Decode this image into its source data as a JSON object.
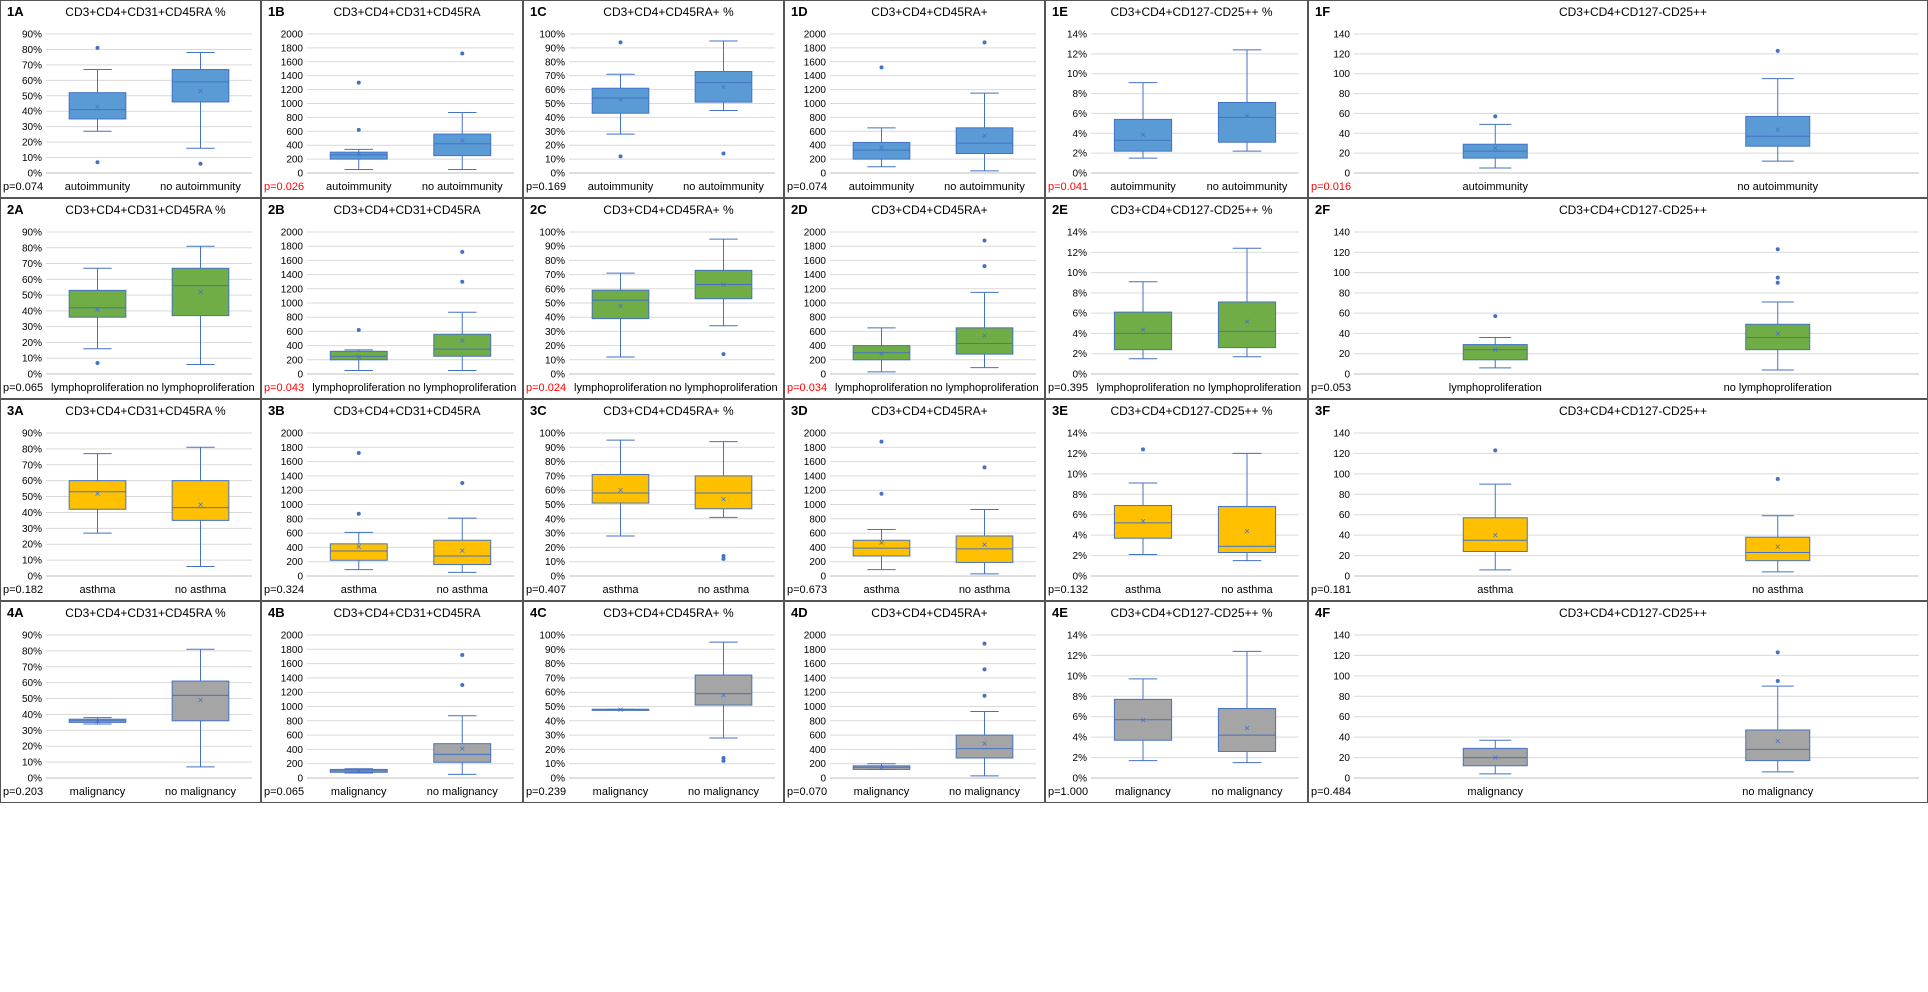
{
  "colors": {
    "autoimmunity": "#5b9bd5",
    "lymphoproliferation": "#70ad47",
    "asthma": "#ffc000",
    "malignancy": "#a5a5a5",
    "stroke": "#4472c4",
    "significant": "#ff0000"
  },
  "metrics": [
    {
      "title": "CD3+CD4+CD31+CD45RA %",
      "ticks": [
        "0%",
        "10%",
        "20%",
        "30%",
        "40%",
        "50%",
        "60%",
        "70%",
        "80%",
        "90%"
      ],
      "ymax": 90
    },
    {
      "title": "CD3+CD4+CD31+CD45RA",
      "ticks": [
        "0",
        "200",
        "400",
        "600",
        "800",
        "1000",
        "1200",
        "1400",
        "1600",
        "1800",
        "2000"
      ],
      "ymax": 2000
    },
    {
      "title": "CD3+CD4+CD45RA+ %",
      "ticks": [
        "0%",
        "10%",
        "20%",
        "30%",
        "40%",
        "50%",
        "60%",
        "70%",
        "80%",
        "90%",
        "100%"
      ],
      "ymax": 100
    },
    {
      "title": "CD3+CD4+CD45RA+",
      "ticks": [
        "0",
        "200",
        "400",
        "600",
        "800",
        "1000",
        "1200",
        "1400",
        "1600",
        "1800",
        "2000"
      ],
      "ymax": 2000
    },
    {
      "title": "CD3+CD4+CD127-CD25++ %",
      "ticks": [
        "0%",
        "2%",
        "4%",
        "6%",
        "8%",
        "10%",
        "12%",
        "14%"
      ],
      "ymax": 14
    },
    {
      "title": "CD3+CD4+CD127-CD25++",
      "ticks": [
        "0",
        "20",
        "40",
        "60",
        "80",
        "100",
        "120",
        "140"
      ],
      "ymax": 140
    }
  ],
  "chart_data": [
    {
      "id": "1A",
      "row": 0,
      "col": 0,
      "type": "box",
      "title": "CD3+CD4+CD31+CD45RA %",
      "pvalue": "p=0.074",
      "significant": false,
      "categories": [
        "autoimmunity",
        "no autoimmunity"
      ],
      "boxes": [
        {
          "min": 27,
          "q1": 35,
          "median": 41,
          "q3": 52,
          "max": 67,
          "mean": 43,
          "outliers": [
            81,
            7
          ]
        },
        {
          "min": 16,
          "q1": 46,
          "median": 59,
          "q3": 67,
          "max": 78,
          "mean": 53,
          "outliers": [
            6
          ]
        }
      ]
    },
    {
      "id": "1B",
      "row": 0,
      "col": 1,
      "type": "box",
      "title": "CD3+CD4+CD31+CD45RA",
      "pvalue": "p=0.026",
      "significant": true,
      "categories": [
        "autoimmunity",
        "no autoimmunity"
      ],
      "boxes": [
        {
          "min": 50,
          "q1": 200,
          "median": 260,
          "q3": 300,
          "max": 340,
          "mean": 270,
          "outliers": [
            1300,
            620
          ]
        },
        {
          "min": 50,
          "q1": 250,
          "median": 420,
          "q3": 560,
          "max": 870,
          "mean": 470,
          "outliers": [
            1720
          ]
        }
      ]
    },
    {
      "id": "1C",
      "row": 0,
      "col": 2,
      "type": "box",
      "title": "CD3+CD4+CD45RA+ %",
      "pvalue": "p=0.169",
      "significant": false,
      "categories": [
        "autoimmunity",
        "no autoimmunity"
      ],
      "boxes": [
        {
          "min": 28,
          "q1": 43,
          "median": 54,
          "q3": 61,
          "max": 71,
          "mean": 53,
          "outliers": [
            94,
            12
          ]
        },
        {
          "min": 45,
          "q1": 51,
          "median": 65,
          "q3": 73,
          "max": 95,
          "mean": 62,
          "outliers": [
            14
          ]
        }
      ]
    },
    {
      "id": "1D",
      "row": 0,
      "col": 3,
      "type": "box",
      "title": "CD3+CD4+CD45RA+",
      "pvalue": "p=0.074",
      "significant": false,
      "categories": [
        "autoimmunity",
        "no autoimmunity"
      ],
      "boxes": [
        {
          "min": 90,
          "q1": 200,
          "median": 330,
          "q3": 440,
          "max": 650,
          "mean": 370,
          "outliers": [
            1520
          ]
        },
        {
          "min": 30,
          "q1": 280,
          "median": 430,
          "q3": 650,
          "max": 1150,
          "mean": 540,
          "outliers": [
            1880
          ]
        }
      ]
    },
    {
      "id": "1E",
      "row": 0,
      "col": 4,
      "type": "box",
      "title": "CD3+CD4+CD127-CD25++ %",
      "pvalue": "p=0.041",
      "significant": true,
      "categories": [
        "autoimmunity",
        "no autoimmunity"
      ],
      "boxes": [
        {
          "min": 1.5,
          "q1": 2.2,
          "median": 3.3,
          "q3": 5.4,
          "max": 9.1,
          "mean": 3.9,
          "outliers": []
        },
        {
          "min": 2.2,
          "q1": 3.1,
          "median": 5.6,
          "q3": 7.1,
          "max": 12.4,
          "mean": 5.8,
          "outliers": []
        }
      ]
    },
    {
      "id": "1F",
      "row": 0,
      "col": 5,
      "type": "box",
      "title": "CD3+CD4+CD127-CD25++",
      "pvalue": "p=0.016",
      "significant": true,
      "categories": [
        "autoimmunity",
        "no autoimmunity"
      ],
      "boxes": [
        {
          "min": 5,
          "q1": 15,
          "median": 22,
          "q3": 29,
          "max": 49,
          "mean": 25,
          "outliers": [
            57
          ]
        },
        {
          "min": 12,
          "q1": 27,
          "median": 37,
          "q3": 57,
          "max": 95,
          "mean": 44,
          "outliers": [
            123
          ]
        }
      ]
    },
    {
      "id": "2A",
      "row": 1,
      "col": 0,
      "type": "box",
      "title": "CD3+CD4+CD31+CD45RA %",
      "pvalue": "p=0.065",
      "significant": false,
      "categories": [
        "lymphoproliferation",
        "no lymphoproliferation"
      ],
      "boxes": [
        {
          "min": 16,
          "q1": 36,
          "median": 42,
          "q3": 53,
          "max": 67,
          "mean": 41,
          "outliers": [
            7
          ]
        },
        {
          "min": 6,
          "q1": 37,
          "median": 56,
          "q3": 67,
          "max": 81,
          "mean": 52,
          "outliers": []
        }
      ]
    },
    {
      "id": "2B",
      "row": 1,
      "col": 1,
      "type": "box",
      "title": "CD3+CD4+CD31+CD45RA",
      "pvalue": "p=0.043",
      "significant": true,
      "categories": [
        "lymphoproliferation",
        "no lymphoproliferation"
      ],
      "boxes": [
        {
          "min": 50,
          "q1": 200,
          "median": 250,
          "q3": 320,
          "max": 340,
          "mean": 240,
          "outliers": [
            620
          ]
        },
        {
          "min": 50,
          "q1": 250,
          "median": 350,
          "q3": 560,
          "max": 870,
          "mean": 470,
          "outliers": [
            1720,
            1300
          ]
        }
      ]
    },
    {
      "id": "2C",
      "row": 1,
      "col": 2,
      "type": "box",
      "title": "CD3+CD4+CD45RA+ %",
      "pvalue": "p=0.024",
      "significant": true,
      "categories": [
        "lymphoproliferation",
        "no lymphoproliferation"
      ],
      "boxes": [
        {
          "min": 12,
          "q1": 39,
          "median": 52,
          "q3": 59,
          "max": 71,
          "mean": 48,
          "outliers": []
        },
        {
          "min": 34,
          "q1": 53,
          "median": 63,
          "q3": 73,
          "max": 95,
          "mean": 63,
          "outliers": [
            14
          ]
        }
      ]
    },
    {
      "id": "2D",
      "row": 1,
      "col": 3,
      "type": "box",
      "title": "CD3+CD4+CD45RA+",
      "pvalue": "p=0.034",
      "significant": true,
      "categories": [
        "lymphoproliferation",
        "no lymphoproliferation"
      ],
      "boxes": [
        {
          "min": 30,
          "q1": 200,
          "median": 300,
          "q3": 400,
          "max": 650,
          "mean": 290,
          "outliers": []
        },
        {
          "min": 90,
          "q1": 280,
          "median": 430,
          "q3": 650,
          "max": 1150,
          "mean": 540,
          "outliers": [
            1880,
            1520
          ]
        }
      ]
    },
    {
      "id": "2E",
      "row": 1,
      "col": 4,
      "type": "box",
      "title": "CD3+CD4+CD127-CD25++ %",
      "pvalue": "p=0.395",
      "significant": false,
      "categories": [
        "lymphoproliferation",
        "no lymphoproliferation"
      ],
      "boxes": [
        {
          "min": 1.5,
          "q1": 2.4,
          "median": 4.0,
          "q3": 6.1,
          "max": 9.1,
          "mean": 4.4,
          "outliers": []
        },
        {
          "min": 1.7,
          "q1": 2.6,
          "median": 4.2,
          "q3": 7.1,
          "max": 12.4,
          "mean": 5.2,
          "outliers": []
        }
      ]
    },
    {
      "id": "2F",
      "row": 1,
      "col": 5,
      "type": "box",
      "title": "CD3+CD4+CD127-CD25++",
      "pvalue": "p=0.053",
      "significant": false,
      "categories": [
        "lymphoproliferation",
        "no lymphoproliferation"
      ],
      "boxes": [
        {
          "min": 6,
          "q1": 14,
          "median": 24,
          "q3": 29,
          "max": 36,
          "mean": 24,
          "outliers": [
            57
          ]
        },
        {
          "min": 4,
          "q1": 24,
          "median": 36,
          "q3": 49,
          "max": 71,
          "mean": 40,
          "outliers": [
            123,
            95,
            90
          ]
        }
      ]
    },
    {
      "id": "3A",
      "row": 2,
      "col": 0,
      "type": "box",
      "title": "CD3+CD4+CD31+CD45RA %",
      "pvalue": "p=0.182",
      "significant": false,
      "categories": [
        "asthma",
        "no asthma"
      ],
      "boxes": [
        {
          "min": 27,
          "q1": 42,
          "median": 53,
          "q3": 60,
          "max": 77,
          "mean": 52,
          "outliers": []
        },
        {
          "min": 6,
          "q1": 35,
          "median": 43,
          "q3": 60,
          "max": 81,
          "mean": 45,
          "outliers": []
        }
      ]
    },
    {
      "id": "3B",
      "row": 2,
      "col": 1,
      "type": "box",
      "title": "CD3+CD4+CD31+CD45RA",
      "pvalue": "p=0.324",
      "significant": false,
      "categories": [
        "asthma",
        "no asthma"
      ],
      "boxes": [
        {
          "min": 90,
          "q1": 220,
          "median": 350,
          "q3": 450,
          "max": 610,
          "mean": 410,
          "outliers": [
            1720,
            870
          ]
        },
        {
          "min": 50,
          "q1": 160,
          "median": 280,
          "q3": 500,
          "max": 810,
          "mean": 360,
          "outliers": [
            1300
          ]
        }
      ]
    },
    {
      "id": "3C",
      "row": 2,
      "col": 2,
      "type": "box",
      "title": "CD3+CD4+CD45RA+ %",
      "pvalue": "p=0.407",
      "significant": false,
      "categories": [
        "asthma",
        "no asthma"
      ],
      "boxes": [
        {
          "min": 28,
          "q1": 51,
          "median": 58,
          "q3": 71,
          "max": 95,
          "mean": 60,
          "outliers": []
        },
        {
          "min": 41,
          "q1": 47,
          "median": 58,
          "q3": 70,
          "max": 94,
          "mean": 54,
          "outliers": [
            14,
            12
          ]
        }
      ]
    },
    {
      "id": "3D",
      "row": 2,
      "col": 3,
      "type": "box",
      "title": "CD3+CD4+CD45RA+",
      "pvalue": "p=0.673",
      "significant": false,
      "categories": [
        "asthma",
        "no asthma"
      ],
      "boxes": [
        {
          "min": 90,
          "q1": 280,
          "median": 390,
          "q3": 500,
          "max": 650,
          "mean": 470,
          "outliers": [
            1880,
            1150
          ]
        },
        {
          "min": 30,
          "q1": 190,
          "median": 380,
          "q3": 560,
          "max": 930,
          "mean": 440,
          "outliers": [
            1520
          ]
        }
      ]
    },
    {
      "id": "3E",
      "row": 2,
      "col": 4,
      "type": "box",
      "title": "CD3+CD4+CD127-CD25++ %",
      "pvalue": "p=0.132",
      "significant": false,
      "categories": [
        "asthma",
        "no asthma"
      ],
      "boxes": [
        {
          "min": 2.1,
          "q1": 3.7,
          "median": 5.2,
          "q3": 6.9,
          "max": 9.1,
          "mean": 5.4,
          "outliers": [
            12.4
          ]
        },
        {
          "min": 1.5,
          "q1": 2.3,
          "median": 2.9,
          "q3": 6.8,
          "max": 12.0,
          "mean": 4.4,
          "outliers": []
        }
      ]
    },
    {
      "id": "3F",
      "row": 2,
      "col": 5,
      "type": "box",
      "title": "CD3+CD4+CD127-CD25++",
      "pvalue": "p=0.181",
      "significant": false,
      "categories": [
        "asthma",
        "no asthma"
      ],
      "boxes": [
        {
          "min": 6,
          "q1": 24,
          "median": 35,
          "q3": 57,
          "max": 90,
          "mean": 40,
          "outliers": [
            123
          ]
        },
        {
          "min": 4,
          "q1": 15,
          "median": 23,
          "q3": 38,
          "max": 59,
          "mean": 29,
          "outliers": [
            95
          ]
        }
      ]
    },
    {
      "id": "4A",
      "row": 3,
      "col": 0,
      "type": "box",
      "title": "CD3+CD4+CD31+CD45RA %",
      "pvalue": "p=0.203",
      "significant": false,
      "categories": [
        "malignancy",
        "no malignancy"
      ],
      "boxes": [
        {
          "min": 34,
          "q1": 35,
          "median": 36,
          "q3": 37,
          "max": 38,
          "mean": 36,
          "outliers": []
        },
        {
          "min": 7,
          "q1": 36,
          "median": 52,
          "q3": 61,
          "max": 81,
          "mean": 49,
          "outliers": []
        }
      ]
    },
    {
      "id": "4B",
      "row": 3,
      "col": 1,
      "type": "box",
      "title": "CD3+CD4+CD31+CD45RA",
      "pvalue": "p=0.065",
      "significant": false,
      "categories": [
        "malignancy",
        "no malignancy"
      ],
      "boxes": [
        {
          "min": 70,
          "q1": 80,
          "median": 100,
          "q3": 120,
          "max": 130,
          "mean": 100,
          "outliers": []
        },
        {
          "min": 50,
          "q1": 220,
          "median": 330,
          "q3": 480,
          "max": 870,
          "mean": 410,
          "outliers": [
            1720,
            1300
          ]
        }
      ]
    },
    {
      "id": "4C",
      "row": 3,
      "col": 2,
      "type": "box",
      "title": "CD3+CD4+CD45RA+ %",
      "pvalue": "p=0.239",
      "significant": false,
      "categories": [
        "malignancy",
        "no malignancy"
      ],
      "boxes": [
        {
          "min": 48,
          "q1": 48,
          "median": 48,
          "q3": 48,
          "max": 48,
          "mean": 48,
          "outliers": []
        },
        {
          "min": 28,
          "q1": 51,
          "median": 59,
          "q3": 72,
          "max": 95,
          "mean": 58,
          "outliers": [
            14,
            12
          ]
        }
      ]
    },
    {
      "id": "4D",
      "row": 3,
      "col": 3,
      "type": "box",
      "title": "CD3+CD4+CD45RA+",
      "pvalue": "p=0.070",
      "significant": false,
      "categories": [
        "malignancy",
        "no malignancy"
      ],
      "boxes": [
        {
          "min": 120,
          "q1": 120,
          "median": 150,
          "q3": 170,
          "max": 200,
          "mean": 150,
          "outliers": []
        },
        {
          "min": 30,
          "q1": 280,
          "median": 410,
          "q3": 600,
          "max": 930,
          "mean": 480,
          "outliers": [
            1880,
            1520,
            1150
          ]
        }
      ]
    },
    {
      "id": "4E",
      "row": 3,
      "col": 4,
      "type": "box",
      "title": "CD3+CD4+CD127-CD25++ %",
      "pvalue": "p=1.000",
      "significant": false,
      "categories": [
        "malignancy",
        "no malignancy"
      ],
      "boxes": [
        {
          "min": 1.7,
          "q1": 3.7,
          "median": 5.7,
          "q3": 7.7,
          "max": 9.7,
          "mean": 5.7,
          "outliers": []
        },
        {
          "min": 1.5,
          "q1": 2.6,
          "median": 4.2,
          "q3": 6.8,
          "max": 12.4,
          "mean": 4.9,
          "outliers": []
        }
      ]
    },
    {
      "id": "4F",
      "row": 3,
      "col": 5,
      "type": "box",
      "title": "CD3+CD4+CD127-CD25++",
      "pvalue": "p=0.484",
      "significant": false,
      "categories": [
        "malignancy",
        "no malignancy"
      ],
      "boxes": [
        {
          "min": 4,
          "q1": 12,
          "median": 20,
          "q3": 29,
          "max": 37,
          "mean": 20,
          "outliers": []
        },
        {
          "min": 6,
          "q1": 17,
          "median": 28,
          "q3": 47,
          "max": 90,
          "mean": 36,
          "outliers": [
            123,
            95
          ]
        }
      ]
    }
  ]
}
